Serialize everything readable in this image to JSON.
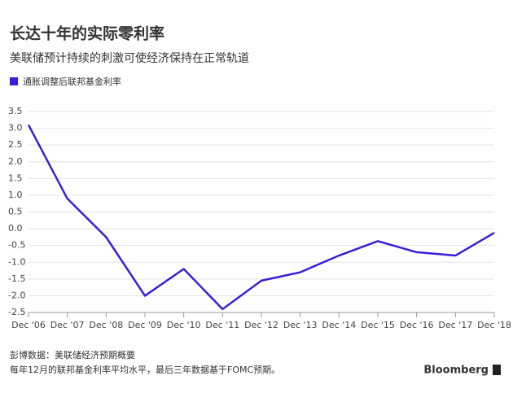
{
  "chart_data": {
    "type": "line",
    "title": "长达十年的实际零利率",
    "subtitle": "美联储预计持续的刺激可使经济保持在正常轨道",
    "categories": [
      "Dec '06",
      "Dec '07",
      "Dec '08",
      "Dec '09",
      "Dec '10",
      "Dec '11",
      "Dec '12",
      "Dec '13",
      "Dec '14",
      "Dec '15",
      "Dec '16",
      "Dec '17",
      "Dec '18"
    ],
    "series": [
      {
        "name": "通胀调整后联邦基金利率",
        "color": "#3b1fd8",
        "values": [
          3.1,
          0.9,
          -0.25,
          -2.0,
          -1.2,
          -2.4,
          -1.55,
          -1.3,
          -0.8,
          -0.37,
          -0.7,
          -0.8,
          -0.12
        ]
      }
    ],
    "ylim": [
      -2.5,
      3.5
    ],
    "yticks": [
      3.5,
      {
        "value": 3,
        "label": "3.0"
      },
      2.5,
      {
        "value": 2,
        "label": "2.0"
      },
      1.5,
      {
        "value": 1,
        "label": "1.0"
      },
      0.5,
      {
        "value": 0,
        "label": "0.0"
      },
      -0.5,
      {
        "value": -1,
        "label": "-1.0"
      },
      -1.5,
      {
        "value": -2,
        "label": "-2.0"
      },
      -2.5
    ],
    "grid": true,
    "source": "彭博数据：美联储经济预期概要",
    "note": "每年12月的联邦基金利率平均水平，最后三年数据基于FOMC预期。",
    "brand": "Bloomberg"
  }
}
